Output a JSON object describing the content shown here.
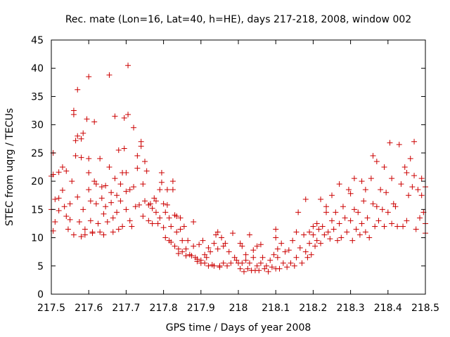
{
  "chart_data": {
    "type": "scatter",
    "title": "Rec. mate (Lon=16, Lat=40, h=HE), days 217-218, 2008, window 002",
    "xlabel": "GPS time / Days of year 2008",
    "ylabel": "STEC from uqrg / TECUs",
    "xlim": [
      217.5,
      218.5
    ],
    "ylim": [
      0,
      45
    ],
    "xticks": [
      217.5,
      217.6,
      217.7,
      217.8,
      217.9,
      218,
      218.1,
      218.2,
      218.3,
      218.4,
      218.5
    ],
    "xtick_labels": [
      "217.5",
      "217.6",
      "217.7",
      "217.8",
      "217.9",
      "218",
      "218.1",
      "218.2",
      "218.3",
      "218.4",
      "218.5"
    ],
    "yticks": [
      0,
      5,
      10,
      15,
      20,
      25,
      30,
      35,
      40,
      45
    ],
    "ytick_labels": [
      "0",
      "5",
      "10",
      "15",
      "20",
      "25",
      "30",
      "35",
      "40",
      "45"
    ],
    "marker": "+",
    "color": "#cc0000",
    "grid": false,
    "points": [
      [
        217.5,
        15.0
      ],
      [
        217.505,
        11.2
      ],
      [
        217.51,
        12.8
      ],
      [
        217.5,
        20.9
      ],
      [
        217.505,
        21.2
      ],
      [
        217.51,
        16.8
      ],
      [
        217.505,
        25.0
      ],
      [
        217.52,
        21.6
      ],
      [
        217.52,
        17.0
      ],
      [
        217.52,
        14.8
      ],
      [
        217.53,
        22.5
      ],
      [
        217.53,
        18.4
      ],
      [
        217.535,
        15.5
      ],
      [
        217.54,
        21.8
      ],
      [
        217.54,
        13.8
      ],
      [
        217.545,
        11.5
      ],
      [
        217.55,
        16.0
      ],
      [
        217.55,
        13.2
      ],
      [
        217.555,
        20.0
      ],
      [
        217.56,
        10.5
      ],
      [
        217.56,
        32.5
      ],
      [
        217.56,
        31.8
      ],
      [
        217.565,
        27.2
      ],
      [
        217.565,
        24.5
      ],
      [
        217.57,
        36.2
      ],
      [
        217.57,
        28.0
      ],
      [
        217.57,
        17.2
      ],
      [
        217.575,
        12.8
      ],
      [
        217.58,
        10.2
      ],
      [
        217.58,
        27.5
      ],
      [
        217.58,
        24.2
      ],
      [
        217.585,
        28.5
      ],
      [
        217.585,
        15.0
      ],
      [
        217.59,
        10.5
      ],
      [
        217.59,
        11.5
      ],
      [
        217.595,
        31.0
      ],
      [
        217.6,
        38.5
      ],
      [
        217.6,
        24.0
      ],
      [
        217.6,
        18.5
      ],
      [
        217.6,
        21.5
      ],
      [
        217.605,
        16.5
      ],
      [
        217.605,
        13.0
      ],
      [
        217.61,
        11.0
      ],
      [
        217.61,
        10.8
      ],
      [
        217.615,
        30.5
      ],
      [
        217.615,
        20.0
      ],
      [
        217.62,
        19.5
      ],
      [
        217.62,
        16.0
      ],
      [
        217.625,
        12.5
      ],
      [
        217.63,
        11.0
      ],
      [
        217.63,
        24.0
      ],
      [
        217.635,
        19.0
      ],
      [
        217.635,
        17.0
      ],
      [
        217.64,
        14.2
      ],
      [
        217.64,
        10.5
      ],
      [
        217.645,
        19.2
      ],
      [
        217.645,
        15.5
      ],
      [
        217.65,
        12.8
      ],
      [
        217.655,
        38.8
      ],
      [
        217.655,
        22.5
      ],
      [
        217.66,
        18.0
      ],
      [
        217.66,
        16.2
      ],
      [
        217.665,
        13.5
      ],
      [
        217.665,
        11.0
      ],
      [
        217.67,
        31.5
      ],
      [
        217.67,
        20.5
      ],
      [
        217.675,
        17.5
      ],
      [
        217.675,
        14.5
      ],
      [
        217.68,
        25.5
      ],
      [
        217.68,
        11.5
      ],
      [
        217.685,
        19.5
      ],
      [
        217.685,
        16.5
      ],
      [
        217.69,
        21.5
      ],
      [
        217.69,
        12.0
      ],
      [
        217.695,
        31.2
      ],
      [
        217.695,
        25.8
      ],
      [
        217.7,
        21.5
      ],
      [
        217.7,
        18.2
      ],
      [
        217.7,
        15.0
      ],
      [
        217.705,
        40.5
      ],
      [
        217.705,
        31.8
      ],
      [
        217.71,
        18.5
      ],
      [
        217.71,
        13.0
      ],
      [
        217.715,
        12.0
      ],
      [
        217.72,
        29.5
      ],
      [
        217.72,
        19.0
      ],
      [
        217.725,
        15.5
      ],
      [
        217.73,
        24.5
      ],
      [
        217.73,
        22.3
      ],
      [
        217.735,
        15.8
      ],
      [
        217.74,
        27.0
      ],
      [
        217.74,
        26.2
      ],
      [
        217.745,
        19.5
      ],
      [
        217.745,
        13.8
      ],
      [
        217.75,
        23.5
      ],
      [
        217.75,
        16.5
      ],
      [
        217.755,
        21.8
      ],
      [
        217.76,
        15.8
      ],
      [
        217.76,
        13.0
      ],
      [
        217.765,
        16.0
      ],
      [
        217.77,
        15.2
      ],
      [
        217.77,
        12.5
      ],
      [
        217.775,
        17.0
      ],
      [
        217.78,
        14.5
      ],
      [
        217.78,
        16.5
      ],
      [
        217.785,
        12.5
      ],
      [
        217.79,
        18.5
      ],
      [
        217.79,
        13.5
      ],
      [
        217.795,
        21.5
      ],
      [
        217.795,
        19.8
      ],
      [
        217.8,
        16.0
      ],
      [
        217.8,
        11.8
      ],
      [
        217.805,
        14.5
      ],
      [
        217.805,
        10.0
      ],
      [
        217.81,
        18.5
      ],
      [
        217.81,
        15.8
      ],
      [
        217.815,
        13.5
      ],
      [
        217.815,
        9.5
      ],
      [
        217.82,
        12.0
      ],
      [
        217.82,
        9.2
      ],
      [
        217.825,
        20.0
      ],
      [
        217.825,
        18.5
      ],
      [
        217.83,
        14.0
      ],
      [
        217.83,
        8.5
      ],
      [
        217.835,
        11.0
      ],
      [
        217.835,
        13.8
      ],
      [
        217.84,
        8.0
      ],
      [
        217.84,
        7.2
      ],
      [
        217.845,
        11.5
      ],
      [
        217.845,
        13.5
      ],
      [
        217.85,
        9.5
      ],
      [
        217.85,
        7.5
      ],
      [
        217.855,
        12.0
      ],
      [
        217.86,
        8.0
      ],
      [
        217.86,
        6.8
      ],
      [
        217.865,
        9.5
      ],
      [
        217.87,
        7.0
      ],
      [
        217.875,
        6.8
      ],
      [
        217.88,
        12.8
      ],
      [
        217.88,
        8.5
      ],
      [
        217.885,
        6.5
      ],
      [
        217.89,
        6.2
      ],
      [
        217.89,
        5.8
      ],
      [
        217.895,
        8.8
      ],
      [
        217.9,
        6.0
      ],
      [
        217.9,
        5.5
      ],
      [
        217.905,
        9.5
      ],
      [
        217.91,
        7.0
      ],
      [
        217.91,
        5.5
      ],
      [
        217.915,
        6.5
      ],
      [
        217.92,
        8.2
      ],
      [
        217.92,
        5.0
      ],
      [
        217.925,
        7.5
      ],
      [
        217.93,
        5.2
      ],
      [
        217.935,
        9.0
      ],
      [
        217.935,
        5.0
      ],
      [
        217.94,
        10.5
      ],
      [
        217.945,
        11.0
      ],
      [
        217.945,
        8.0
      ],
      [
        217.95,
        5.0
      ],
      [
        217.95,
        4.8
      ],
      [
        217.955,
        10.0
      ],
      [
        217.96,
        8.5
      ],
      [
        217.96,
        5.5
      ],
      [
        217.965,
        9.0
      ],
      [
        217.97,
        5.0
      ],
      [
        217.975,
        7.5
      ],
      [
        217.98,
        5.5
      ],
      [
        217.985,
        10.8
      ],
      [
        217.99,
        6.5
      ],
      [
        217.995,
        6.0
      ],
      [
        218.0,
        5.5
      ],
      [
        218.005,
        9.0
      ],
      [
        218.005,
        4.5
      ],
      [
        218.01,
        8.5
      ],
      [
        218.01,
        5.5
      ],
      [
        218.015,
        4.0
      ],
      [
        218.02,
        7.0
      ],
      [
        218.02,
        6.0
      ],
      [
        218.025,
        4.5
      ],
      [
        218.03,
        10.5
      ],
      [
        218.03,
        5.5
      ],
      [
        218.035,
        4.2
      ],
      [
        218.04,
        7.8
      ],
      [
        218.04,
        6.5
      ],
      [
        218.045,
        4.2
      ],
      [
        218.05,
        8.5
      ],
      [
        218.05,
        5.0
      ],
      [
        218.055,
        4.2
      ],
      [
        218.06,
        8.8
      ],
      [
        218.06,
        5.5
      ],
      [
        218.065,
        6.5
      ],
      [
        218.07,
        4.5
      ],
      [
        218.075,
        5.0
      ],
      [
        218.08,
        4.0
      ],
      [
        218.085,
        6.0
      ],
      [
        218.09,
        4.8
      ],
      [
        218.095,
        7.0
      ],
      [
        218.1,
        11.5
      ],
      [
        218.1,
        10.0
      ],
      [
        218.1,
        4.5
      ],
      [
        218.105,
        8.0
      ],
      [
        218.105,
        6.5
      ],
      [
        218.11,
        4.5
      ],
      [
        218.115,
        9.0
      ],
      [
        218.12,
        5.5
      ],
      [
        218.125,
        7.5
      ],
      [
        218.13,
        4.8
      ],
      [
        218.135,
        7.8
      ],
      [
        218.14,
        5.5
      ],
      [
        218.145,
        9.5
      ],
      [
        218.15,
        5.0
      ],
      [
        218.155,
        11.0
      ],
      [
        218.155,
        6.5
      ],
      [
        218.16,
        14.5
      ],
      [
        218.165,
        8.2
      ],
      [
        218.17,
        5.5
      ],
      [
        218.175,
        10.5
      ],
      [
        218.18,
        16.8
      ],
      [
        218.18,
        7.5
      ],
      [
        218.185,
        6.5
      ],
      [
        218.19,
        11.0
      ],
      [
        218.19,
        9.0
      ],
      [
        218.195,
        7.0
      ],
      [
        218.2,
        12.0
      ],
      [
        218.2,
        10.5
      ],
      [
        218.205,
        8.5
      ],
      [
        218.21,
        12.5
      ],
      [
        218.21,
        9.5
      ],
      [
        218.215,
        11.5
      ],
      [
        218.22,
        16.8
      ],
      [
        218.22,
        9.0
      ],
      [
        218.225,
        12.0
      ],
      [
        218.23,
        10.5
      ],
      [
        218.235,
        15.5
      ],
      [
        218.235,
        14.5
      ],
      [
        218.24,
        11.0
      ],
      [
        218.245,
        9.8
      ],
      [
        218.25,
        17.5
      ],
      [
        218.25,
        13.0
      ],
      [
        218.255,
        11.5
      ],
      [
        218.26,
        14.5
      ],
      [
        218.265,
        9.5
      ],
      [
        218.27,
        19.5
      ],
      [
        218.27,
        12.5
      ],
      [
        218.275,
        10.0
      ],
      [
        218.28,
        15.5
      ],
      [
        218.285,
        13.5
      ],
      [
        218.29,
        11.0
      ],
      [
        218.295,
        18.5
      ],
      [
        218.3,
        17.8
      ],
      [
        218.3,
        13.0
      ],
      [
        218.305,
        9.5
      ],
      [
        218.31,
        20.5
      ],
      [
        218.31,
        15.0
      ],
      [
        218.315,
        11.5
      ],
      [
        218.32,
        14.5
      ],
      [
        218.325,
        10.5
      ],
      [
        218.33,
        20.0
      ],
      [
        218.33,
        12.5
      ],
      [
        218.335,
        16.5
      ],
      [
        218.34,
        18.5
      ],
      [
        218.34,
        11.0
      ],
      [
        218.345,
        13.5
      ],
      [
        218.35,
        10.0
      ],
      [
        218.355,
        20.5
      ],
      [
        218.36,
        24.5
      ],
      [
        218.36,
        16.0
      ],
      [
        218.365,
        12.0
      ],
      [
        218.37,
        23.5
      ],
      [
        218.37,
        15.5
      ],
      [
        218.375,
        13.0
      ],
      [
        218.38,
        18.5
      ],
      [
        218.385,
        15.0
      ],
      [
        218.39,
        22.5
      ],
      [
        218.39,
        12.0
      ],
      [
        218.395,
        18.0
      ],
      [
        218.4,
        14.5
      ],
      [
        218.405,
        26.8
      ],
      [
        218.41,
        20.5
      ],
      [
        218.41,
        12.5
      ],
      [
        218.415,
        16.0
      ],
      [
        218.42,
        15.5
      ],
      [
        218.425,
        12.0
      ],
      [
        218.43,
        26.5
      ],
      [
        218.435,
        19.5
      ],
      [
        218.44,
        12.0
      ],
      [
        218.445,
        22.5
      ],
      [
        218.45,
        21.5
      ],
      [
        218.45,
        13.0
      ],
      [
        218.455,
        17.5
      ],
      [
        218.46,
        24.0
      ],
      [
        218.465,
        19.0
      ],
      [
        218.47,
        27.0
      ],
      [
        218.47,
        21.0
      ],
      [
        218.475,
        11.5
      ],
      [
        218.48,
        18.5
      ],
      [
        218.485,
        13.5
      ],
      [
        218.49,
        20.5
      ],
      [
        218.49,
        17.5
      ],
      [
        218.495,
        14.5
      ],
      [
        218.5,
        12.5
      ],
      [
        218.5,
        19.0
      ],
      [
        218.5,
        10.8
      ]
    ]
  }
}
